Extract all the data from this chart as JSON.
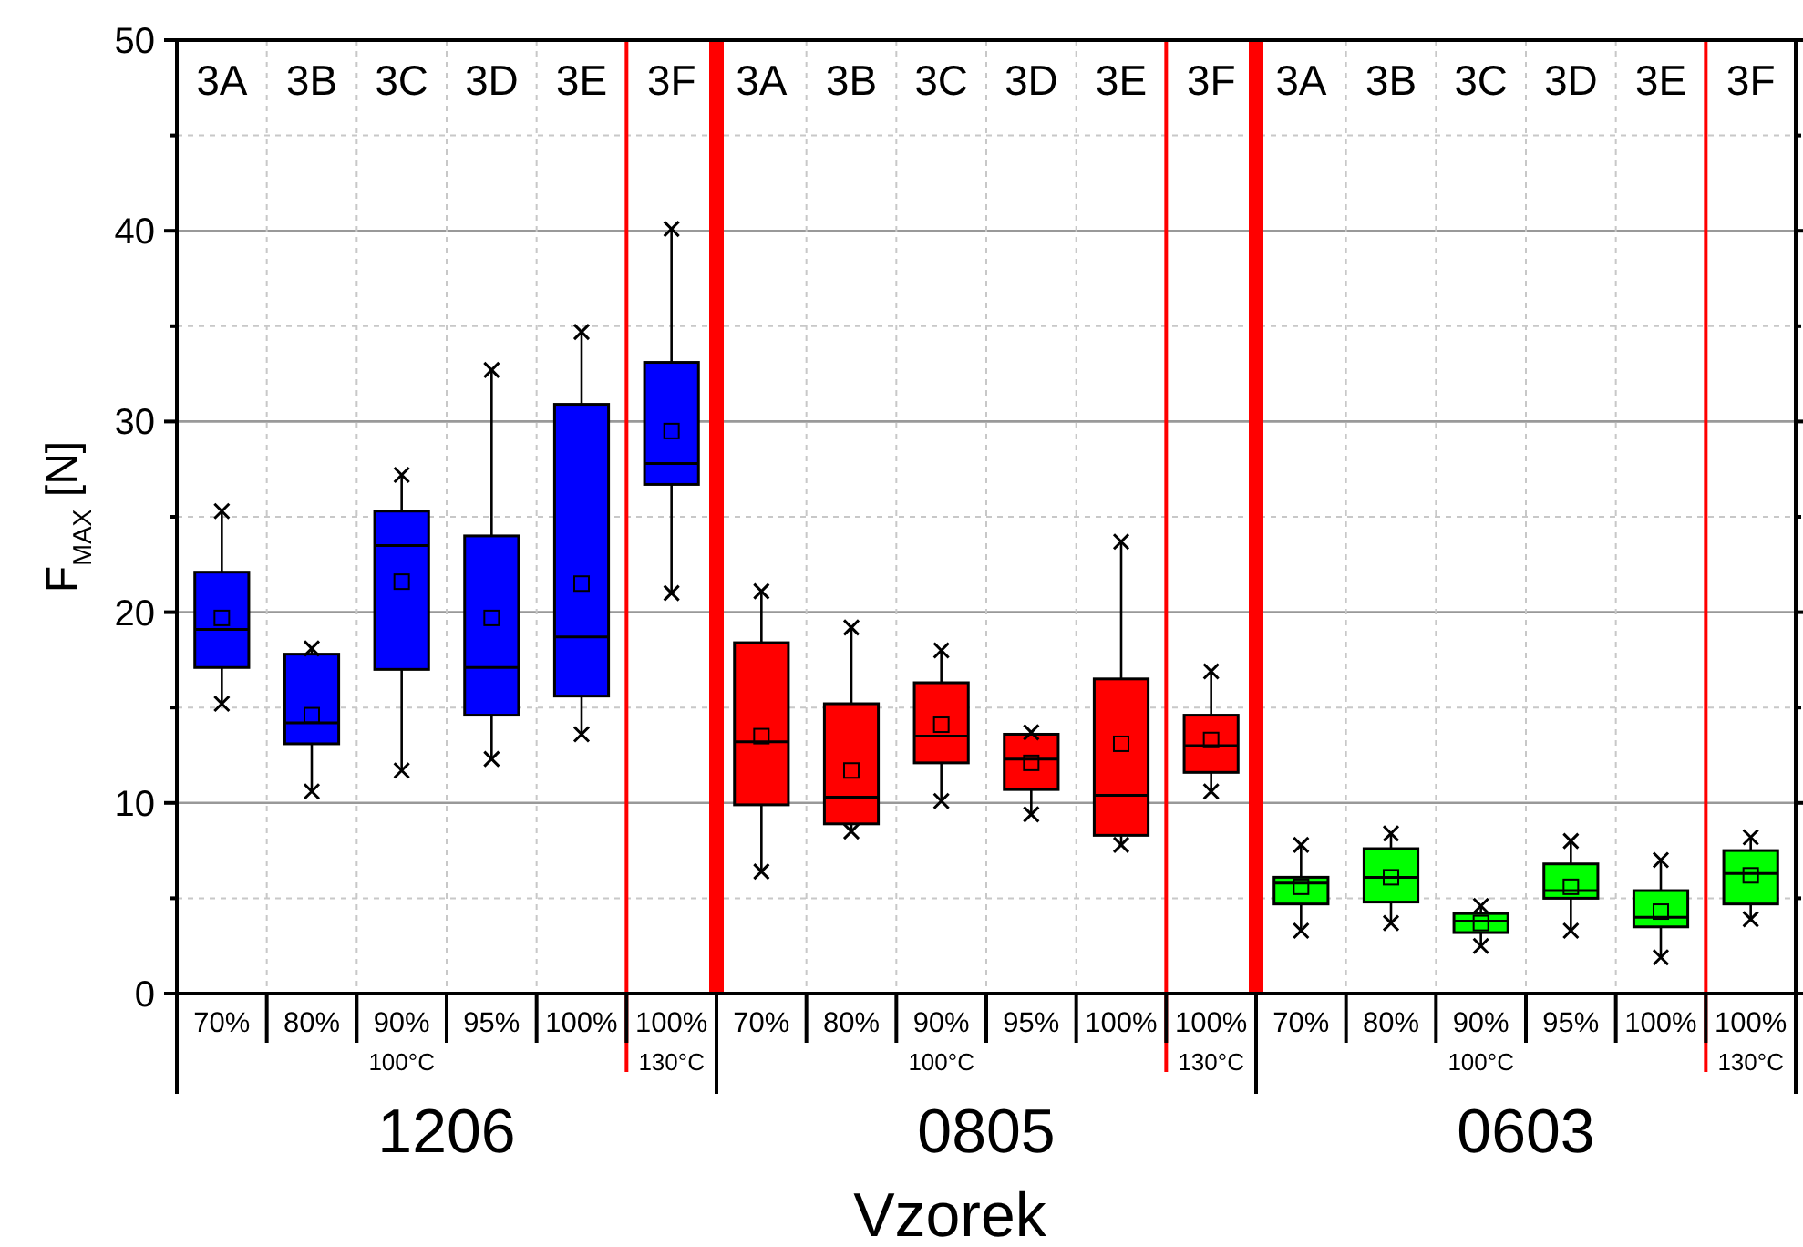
{
  "chart_data": {
    "type": "box",
    "xlabel": "Vzorek",
    "ylabel": "F$_{MAX}$ [N]",
    "categories": [
      "70%",
      "80%",
      "90%",
      "95%",
      "100%",
      "100%",
      "70%",
      "80%",
      "90%",
      "95%",
      "100%",
      "100%",
      "70%",
      "80%",
      "90%",
      "95%",
      "100%",
      "100%"
    ],
    "colors": [
      "#0000ff",
      "#0000ff",
      "#0000ff",
      "#0000ff",
      "#0000ff",
      "#0000ff",
      "#ff0000",
      "#ff0000",
      "#ff0000",
      "#ff0000",
      "#ff0000",
      "#ff0000",
      "#00ff00",
      "#00ff00",
      "#00ff00",
      "#00ff00",
      "#00ff00",
      "#00ff00"
    ],
    "boxes": [
      {
        "low": 15.2,
        "q1": 17.1,
        "median": 19.1,
        "q3": 22.1,
        "high": 25.3,
        "mean": 19.7
      },
      {
        "low": 10.6,
        "q1": 13.1,
        "median": 14.2,
        "q3": 17.8,
        "high": 18.1,
        "mean": 14.6
      },
      {
        "low": 11.7,
        "q1": 17.0,
        "median": 23.5,
        "q3": 25.3,
        "high": 27.2,
        "mean": 21.6
      },
      {
        "low": 12.3,
        "q1": 14.6,
        "median": 17.1,
        "q3": 24.0,
        "high": 32.7,
        "mean": 19.7
      },
      {
        "low": 13.6,
        "q1": 15.6,
        "median": 18.7,
        "q3": 30.9,
        "high": 34.7,
        "mean": 21.5
      },
      {
        "low": 21.0,
        "q1": 26.7,
        "median": 27.8,
        "q3": 33.1,
        "high": 40.1,
        "mean": 29.5
      },
      {
        "low": 6.4,
        "q1": 9.9,
        "median": 13.2,
        "q3": 18.4,
        "high": 21.1,
        "mean": 13.5
      },
      {
        "low": 8.5,
        "q1": 8.9,
        "median": 10.3,
        "q3": 15.2,
        "high": 19.2,
        "mean": 11.7
      },
      {
        "low": 10.1,
        "q1": 12.1,
        "median": 13.5,
        "q3": 16.3,
        "high": 18.0,
        "mean": 14.1
      },
      {
        "low": 9.4,
        "q1": 10.7,
        "median": 12.3,
        "q3": 13.6,
        "high": 13.7,
        "mean": 12.1
      },
      {
        "low": 7.8,
        "q1": 8.3,
        "median": 10.4,
        "q3": 16.5,
        "high": 23.7,
        "mean": 13.1
      },
      {
        "low": 10.6,
        "q1": 11.6,
        "median": 13.0,
        "q3": 14.6,
        "high": 16.9,
        "mean": 13.3
      },
      {
        "low": 3.3,
        "q1": 4.7,
        "median": 5.8,
        "q3": 6.1,
        "high": 7.8,
        "mean": 5.6
      },
      {
        "low": 3.7,
        "q1": 4.8,
        "median": 6.1,
        "q3": 7.6,
        "high": 8.4,
        "mean": 6.1
      },
      {
        "low": 2.5,
        "q1": 3.2,
        "median": 3.8,
        "q3": 4.2,
        "high": 4.6,
        "mean": 3.7
      },
      {
        "low": 3.3,
        "q1": 5.0,
        "median": 5.4,
        "q3": 6.8,
        "high": 8.0,
        "mean": 5.6
      },
      {
        "low": 1.9,
        "q1": 3.5,
        "median": 4.0,
        "q3": 5.4,
        "high": 7.0,
        "mean": 4.3
      },
      {
        "low": 3.9,
        "q1": 4.7,
        "median": 6.3,
        "q3": 7.5,
        "high": 8.2,
        "mean": 6.2
      }
    ],
    "ylim": [
      0,
      50
    ],
    "yticks": [
      0,
      {
        "value": 5,
        "label": null
      },
      10,
      {
        "value": 15,
        "label": null
      },
      20,
      {
        "value": 25,
        "label": null
      },
      30,
      {
        "value": 35,
        "label": null
      },
      40,
      {
        "value": 45,
        "label": null
      },
      50
    ],
    "grid": true,
    "annotations": [
      "3A",
      "3B",
      "3C",
      "3D",
      "3E",
      "3F",
      "3A",
      "3B",
      "3C",
      "3D",
      "3E",
      "3F",
      "3A",
      "3B",
      "3C",
      "3D",
      "3E",
      "3F",
      "100°C",
      "130°C",
      "100°C",
      "130°C",
      "100°C",
      "130°C",
      "1206",
      "0805",
      "0603"
    ]
  }
}
